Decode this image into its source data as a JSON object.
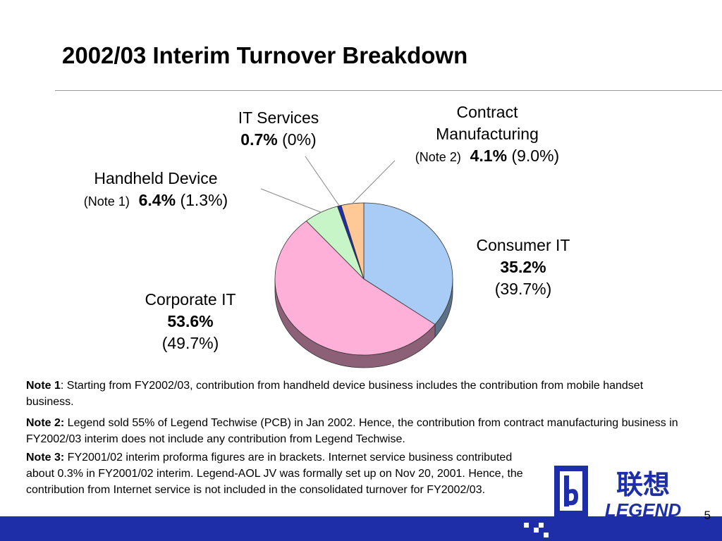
{
  "slide": {
    "title": "2002/03 Interim Turnover Breakdown",
    "page_number": "5"
  },
  "labels": {
    "it_services": {
      "name": "IT Services",
      "value": "0.7%",
      "prior": "(0%)"
    },
    "contract": {
      "name_line1": "Contract",
      "name_line2": "Manufacturing",
      "note": "(Note 2)",
      "value": "4.1%",
      "prior": "(9.0%)"
    },
    "handheld": {
      "name": "Handheld Device",
      "note": "(Note 1)",
      "value": "6.4%",
      "prior": "(1.3%)"
    },
    "consumer": {
      "name": "Consumer IT",
      "value": "35.2%",
      "prior": "(39.7%)"
    },
    "corporate": {
      "name": "Corporate IT",
      "value": "53.6%",
      "prior": "(49.7%)"
    }
  },
  "notes": {
    "note1_label": "Note 1",
    "note1_text": ": Starting from FY2002/03, contribution from handheld device business includes the contribution from mobile handset business.",
    "note2_label": "Note 2:",
    "note2_text": " Legend sold 55% of Legend Techwise (PCB) in Jan 2002.  Hence, the contribution from contract manufacturing business in FY2002/03 interim does not include any contribution from Legend Techwise.",
    "note3_label": "Note 3:",
    "note3_text": "  FY2001/02 interim proforma figures are in brackets.  Internet service business contributed about 0.3% in FY2001/02 interim.  Legend-AOL JV was formally set up on Nov 20, 2001.  Hence, the contribution from Internet service is not included in the consolidated turnover for FY2002/03."
  },
  "logo": {
    "chinese": "联想",
    "english": "LEGEND"
  },
  "chart_data": {
    "type": "pie",
    "title": "2002/03 Interim Turnover Breakdown",
    "series": [
      {
        "name": "Consumer IT",
        "value": 35.2,
        "prior": 39.7,
        "color": "#a8ccf5"
      },
      {
        "name": "Corporate IT",
        "value": 53.6,
        "prior": 49.7,
        "color": "#ffb0d8"
      },
      {
        "name": "Handheld Device",
        "value": 6.4,
        "prior": 1.3,
        "color": "#c8f5c8"
      },
      {
        "name": "IT Services",
        "value": 0.7,
        "prior": 0,
        "color": "#1e2ea8"
      },
      {
        "name": "Contract Manufacturing",
        "value": 4.1,
        "prior": 9.0,
        "color": "#ffc896"
      }
    ],
    "units": "%"
  }
}
